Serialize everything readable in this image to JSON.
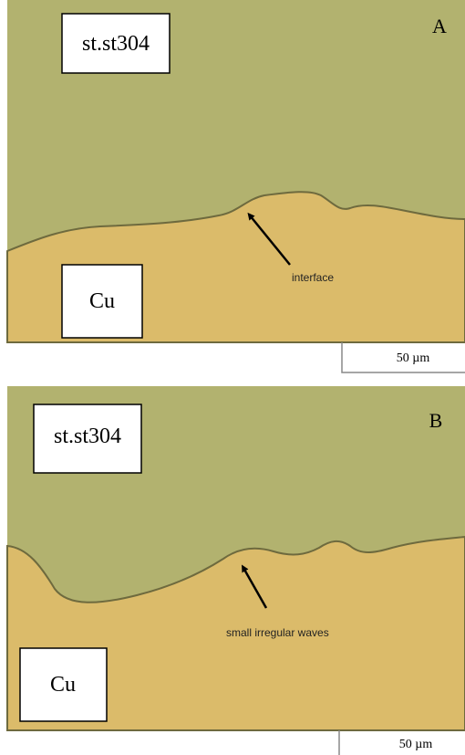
{
  "panels": [
    {
      "label": "A",
      "top_material": "st.st304",
      "bottom_material": "Cu",
      "annotation": "interface",
      "scale_bar": "50 µm"
    },
    {
      "label": "B",
      "top_material": "st.st304",
      "bottom_material": "Cu",
      "annotation": "small irregular waves",
      "scale_bar": "50 µm"
    }
  ]
}
